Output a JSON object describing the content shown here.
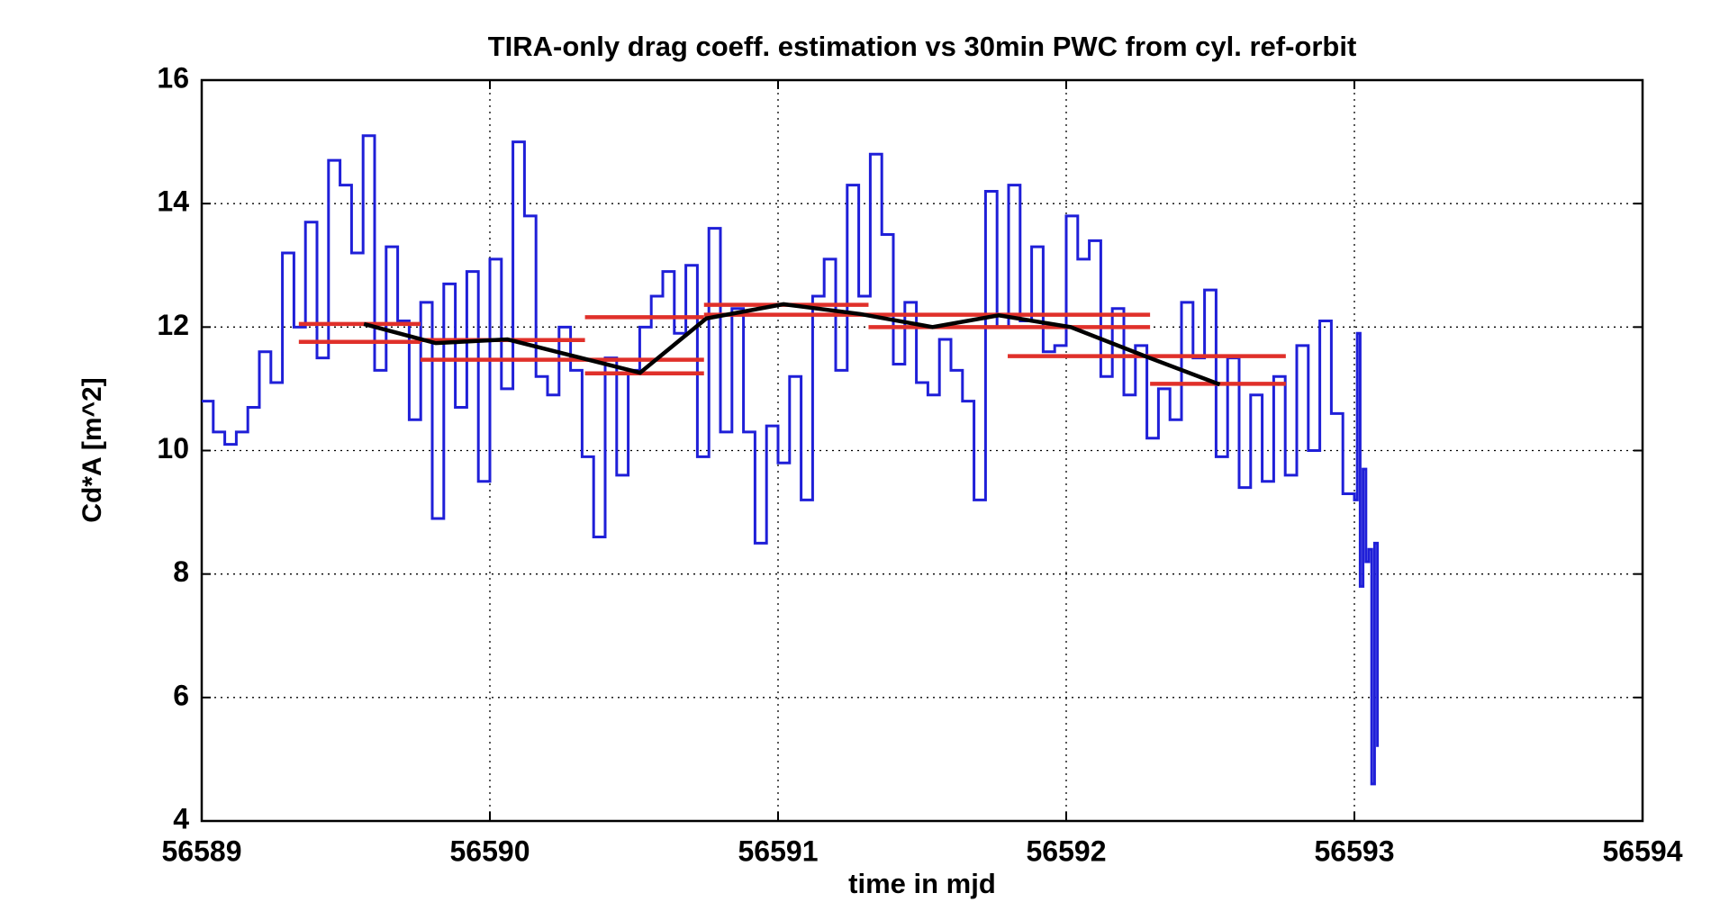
{
  "chart_data": {
    "type": "line",
    "title": "TIRA-only drag coeff. estimation vs 30min PWC from cyl. ref-orbit",
    "xlabel": "time in mjd",
    "ylabel": "Cd*A [m^2]",
    "xlim": [
      56589,
      56594
    ],
    "xticks": [
      56589,
      56590,
      56591,
      56592,
      56593,
      56594
    ],
    "ylim": [
      4,
      16
    ],
    "yticks": [
      4,
      6,
      8,
      10,
      12,
      14,
      16
    ],
    "grid": true,
    "series": [
      {
        "color": "#1f1fd8",
        "step": "post",
        "x": [
          56589,
          56589.04,
          56589.08,
          56589.12,
          56589.16,
          56589.2,
          56589.24,
          56589.28,
          56589.32,
          56589.36,
          56589.4,
          56589.44,
          56589.48,
          56589.52,
          56589.56,
          56589.6,
          56589.64,
          56589.68,
          56589.72,
          56589.76,
          56589.8,
          56589.84,
          56589.88,
          56589.92,
          56589.96,
          56590,
          56590.04,
          56590.08,
          56590.12,
          56590.16,
          56590.2,
          56590.24,
          56590.28,
          56590.32,
          56590.36,
          56590.4,
          56590.44,
          56590.48,
          56590.52,
          56590.56,
          56590.6,
          56590.64,
          56590.68,
          56590.72,
          56590.76,
          56590.8,
          56590.84,
          56590.88,
          56590.92,
          56590.96,
          56591,
          56591.04,
          56591.08,
          56591.12,
          56591.16,
          56591.2,
          56591.24,
          56591.28,
          56591.32,
          56591.36,
          56591.4,
          56591.44,
          56591.48,
          56591.52,
          56591.56,
          56591.6,
          56591.64,
          56591.68,
          56591.72,
          56591.76,
          56591.8,
          56591.84,
          56591.88,
          56591.92,
          56591.96,
          56592,
          56592.04,
          56592.08,
          56592.12,
          56592.16,
          56592.2,
          56592.24,
          56592.28,
          56592.32,
          56592.36,
          56592.4,
          56592.44,
          56592.48,
          56592.52,
          56592.56,
          56592.6,
          56592.64,
          56592.68,
          56592.72,
          56592.76,
          56592.8,
          56592.84,
          56592.88,
          56592.92,
          56592.96,
          56593,
          56593.01,
          56593.02,
          56593.03,
          56593.04,
          56593.05,
          56593.06,
          56593.07,
          56593.08
        ],
        "values": [
          10.8,
          10.3,
          10.1,
          10.3,
          10.7,
          11.6,
          11.1,
          13.2,
          12.0,
          13.7,
          11.5,
          14.7,
          14.3,
          13.2,
          15.1,
          11.3,
          13.3,
          12.1,
          10.5,
          12.4,
          8.9,
          12.7,
          10.7,
          12.9,
          9.5,
          13.1,
          11.0,
          15.0,
          13.8,
          11.2,
          10.9,
          12.0,
          11.3,
          9.9,
          8.6,
          11.5,
          9.6,
          11.3,
          12.0,
          12.5,
          12.9,
          11.9,
          13.0,
          9.9,
          13.6,
          10.3,
          12.3,
          10.3,
          8.5,
          10.4,
          9.8,
          11.2,
          9.2,
          12.5,
          13.1,
          11.3,
          14.3,
          12.5,
          14.8,
          13.5,
          11.4,
          12.4,
          11.1,
          10.9,
          11.8,
          11.3,
          10.8,
          9.2,
          14.2,
          12.0,
          14.3,
          12.1,
          13.3,
          11.6,
          11.7,
          13.8,
          13.1,
          13.4,
          11.2,
          12.3,
          10.9,
          11.7,
          10.2,
          11.0,
          10.5,
          12.4,
          11.5,
          12.6,
          9.9,
          11.5,
          9.4,
          10.9,
          9.5,
          11.2,
          9.6,
          11.7,
          10.0,
          12.1,
          10.6,
          9.3,
          9.2,
          11.9,
          7.8,
          9.7,
          8.2,
          8.4,
          4.6,
          8.5,
          5.2
        ]
      },
      {
        "color": "#e0302a",
        "x": [
          56589.337,
          56589.759
        ],
        "values": [
          12.05,
          12.05
        ]
      },
      {
        "color": "#e0302a",
        "x": [
          56589.337,
          56589.759
        ],
        "values": [
          11.76,
          11.76
        ]
      },
      {
        "color": "#e0302a",
        "x": [
          56589.759,
          56590.33
        ],
        "values": [
          11.79,
          11.79
        ]
      },
      {
        "color": "#e0302a",
        "x": [
          56589.759,
          56590.33
        ],
        "values": [
          11.47,
          11.47
        ]
      },
      {
        "color": "#e0302a",
        "x": [
          56590.33,
          56590.743
        ],
        "values": [
          12.16,
          12.16
        ]
      },
      {
        "color": "#e0302a",
        "x": [
          56590.33,
          56590.743
        ],
        "values": [
          11.47,
          11.47
        ]
      },
      {
        "color": "#e0302a",
        "x": [
          56590.33,
          56590.743
        ],
        "values": [
          11.25,
          11.25
        ]
      },
      {
        "color": "#e0302a",
        "x": [
          56590.743,
          56591.314
        ],
        "values": [
          12.36,
          12.36
        ]
      },
      {
        "color": "#e0302a",
        "x": [
          56590.743,
          56591.314
        ],
        "values": [
          12.2,
          12.2
        ]
      },
      {
        "color": "#e0302a",
        "x": [
          56591.314,
          56592.291
        ],
        "values": [
          12.2,
          12.2
        ]
      },
      {
        "color": "#e0302a",
        "x": [
          56591.314,
          56592.291
        ],
        "values": [
          12.0,
          12.0
        ]
      },
      {
        "color": "#e0302a",
        "x": [
          56591.797,
          56592.762
        ],
        "values": [
          11.53,
          11.53
        ]
      },
      {
        "color": "#e0302a",
        "x": [
          56592.291,
          56592.762
        ],
        "values": [
          11.08,
          11.08
        ]
      },
      {
        "color": "#000000",
        "x": [
          56589.563,
          56589.812,
          56590.061,
          56590.291,
          56590.521,
          56590.751,
          56591.019,
          56591.287,
          56591.536,
          56591.766,
          56592.015,
          56592.284,
          56592.533
        ],
        "values": [
          12.05,
          11.74,
          11.8,
          11.53,
          11.26,
          12.14,
          12.37,
          12.21,
          12.0,
          12.19,
          12.0,
          11.51,
          11.07
        ]
      }
    ]
  }
}
